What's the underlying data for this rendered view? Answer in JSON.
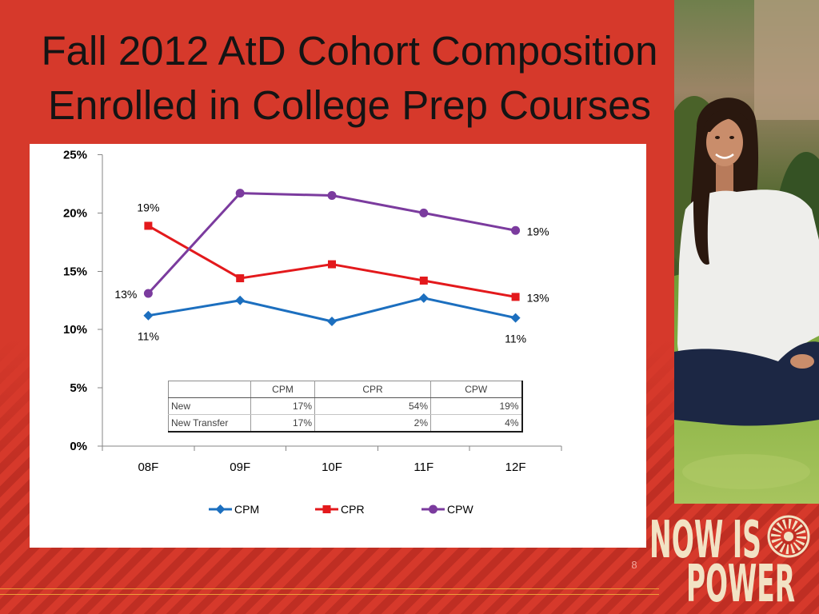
{
  "slide": {
    "title": [
      "Fall 2012 AtD Cohort Composition",
      "Enrolled in College Prep Courses"
    ],
    "page_number": "8",
    "colors": {
      "background": "#d6392b",
      "stripe": "#bf2e23",
      "accent_line": "#f2b13c",
      "logo": "#f2e2c4"
    }
  },
  "logo": {
    "line1": "NOW IS",
    "line2": "POWER"
  },
  "chart_data": {
    "type": "line",
    "categories": [
      "08F",
      "09F",
      "10F",
      "11F",
      "12F"
    ],
    "ylim": [
      0,
      25
    ],
    "y_tick_values": [
      0,
      5,
      10,
      15,
      20,
      25
    ],
    "y_ticks": [
      "0%",
      "5%",
      "10%",
      "15%",
      "20%",
      "25%"
    ],
    "grid": false,
    "legend": "bottom",
    "series": [
      {
        "name": "CPM",
        "color": "#1c6fbf",
        "marker": "diamond",
        "values": [
          11.2,
          12.5,
          10.7,
          12.7,
          11.0
        ],
        "labels": [
          "11%",
          null,
          null,
          null,
          "11%"
        ]
      },
      {
        "name": "CPR",
        "color": "#e3191c",
        "marker": "square",
        "values": [
          18.9,
          14.4,
          15.6,
          14.2,
          12.8
        ],
        "labels": [
          "19%",
          null,
          null,
          null,
          "13%"
        ]
      },
      {
        "name": "CPW",
        "color": "#7b3b9e",
        "marker": "circle",
        "values": [
          13.1,
          21.7,
          21.5,
          20.0,
          18.5
        ],
        "labels": [
          "13%",
          null,
          null,
          null,
          "19%"
        ]
      }
    ]
  },
  "data_table": {
    "columns": [
      "CPM",
      "CPR",
      "CPW"
    ],
    "rows": [
      {
        "label": "New",
        "values": [
          "17%",
          "54%",
          "19%"
        ]
      },
      {
        "label": "New Transfer",
        "values": [
          "17%",
          "2%",
          "4%"
        ]
      }
    ]
  }
}
